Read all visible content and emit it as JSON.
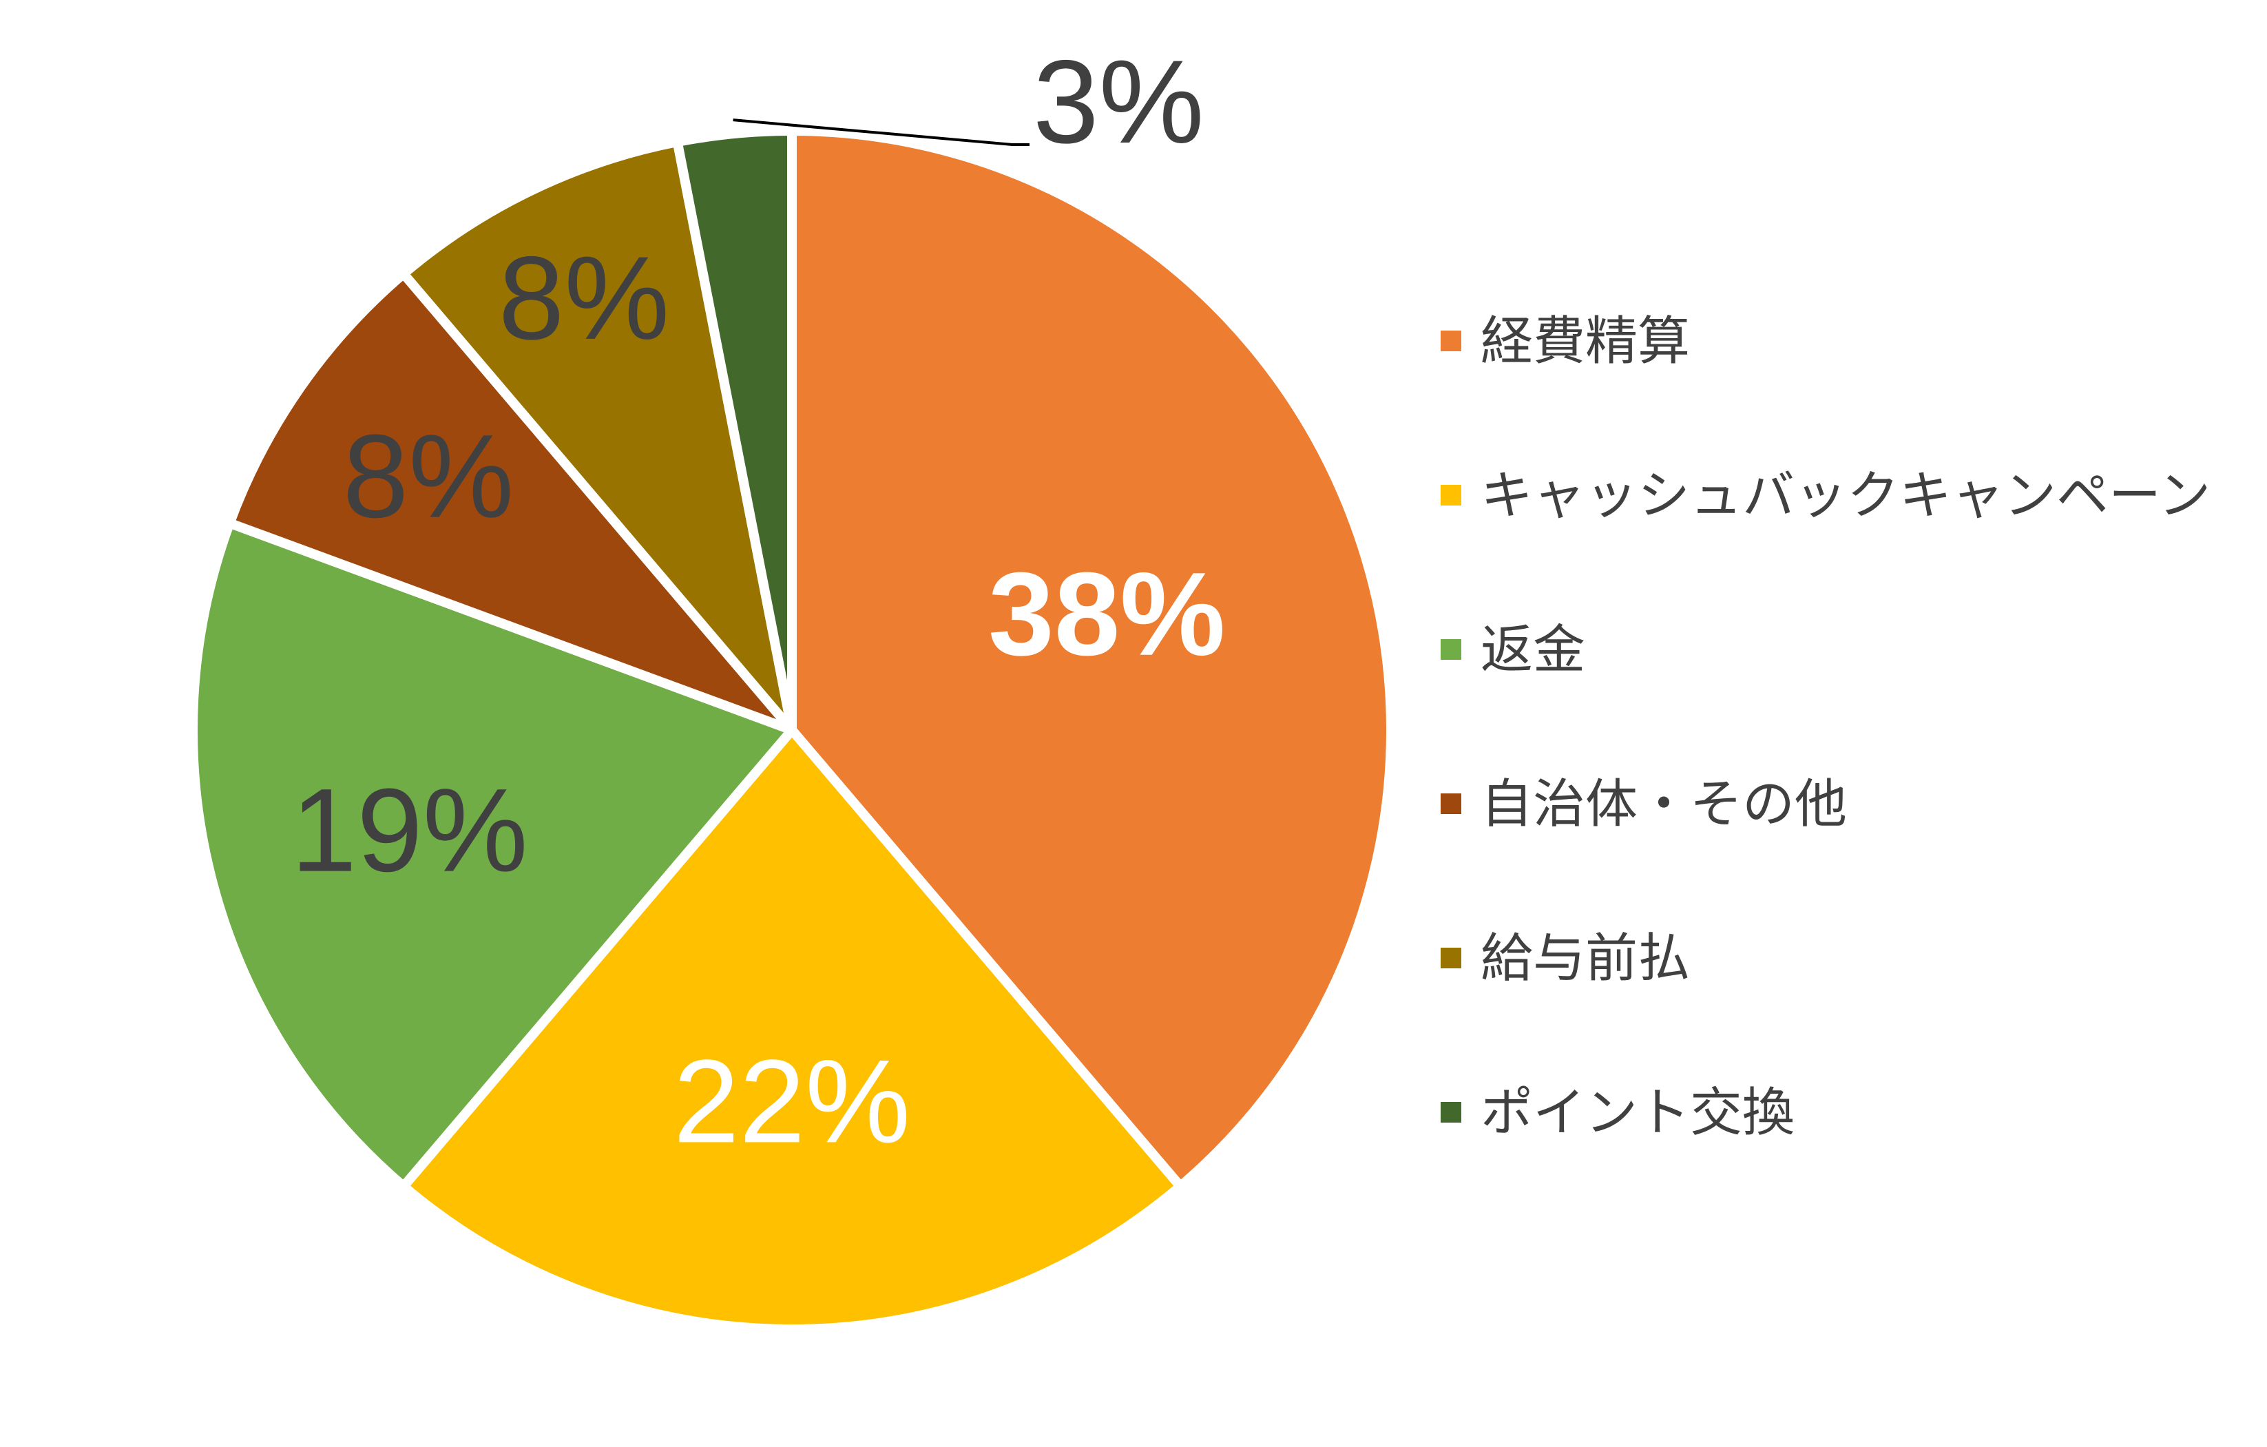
{
  "chart_data": {
    "type": "pie",
    "title": "",
    "legend_position": "right",
    "slices": [
      {
        "label": "経費精算",
        "value": 38,
        "value_label": "38%",
        "color": "#ED7D31",
        "label_color": "#FFFFFF",
        "label_bold": true
      },
      {
        "label": "キャッシュバックキャンペーン",
        "value": 22,
        "value_label": "22%",
        "color": "#FFC000",
        "label_color": "#FFFFFF",
        "label_bold": false
      },
      {
        "label": "返金",
        "value": 19,
        "value_label": "19%",
        "color": "#70AD47",
        "label_color": "#404040",
        "label_bold": false
      },
      {
        "label": "自治体・その他",
        "value": 8,
        "value_label": "8%",
        "color": "#9E480E",
        "label_color": "#404040",
        "label_bold": false
      },
      {
        "label": "給与前払",
        "value": 8,
        "value_label": "8%",
        "color": "#997300",
        "label_color": "#404040",
        "label_bold": false
      },
      {
        "label": "ポイント交換",
        "value": 3,
        "value_label": "3%",
        "color": "#43682B",
        "label_color": "#404040",
        "label_bold": false
      }
    ]
  }
}
